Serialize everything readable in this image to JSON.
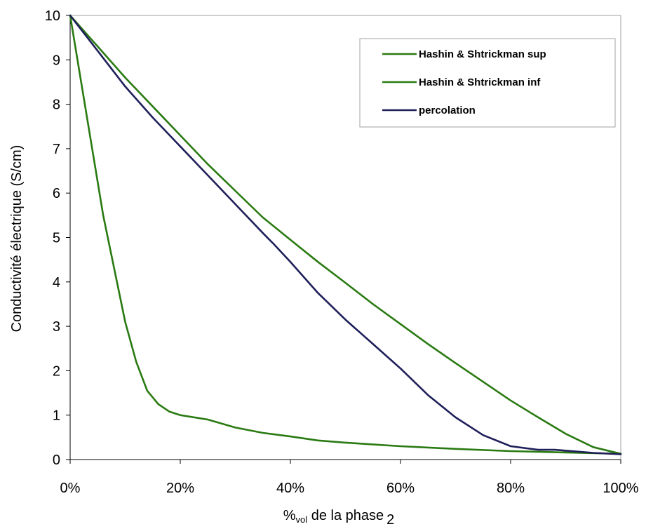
{
  "chart_data": {
    "type": "line",
    "xlabel_main": "%",
    "xlabel_sub": "vol",
    "xlabel_rest": " de la phase",
    "xlabel_suffix": "2",
    "ylabel": "Conductivité électrique (S/cm)",
    "xlim": [
      0,
      100
    ],
    "ylim": [
      0,
      10
    ],
    "x_ticks": [
      0,
      20,
      40,
      60,
      80,
      100
    ],
    "x_tick_labels": [
      "0%",
      "20%",
      "40%",
      "60%",
      "80%",
      "100%"
    ],
    "y_ticks": [
      0,
      1,
      2,
      3,
      4,
      5,
      6,
      7,
      8,
      9,
      10
    ],
    "y_tick_labels": [
      "0",
      "1",
      "2",
      "3",
      "4",
      "5",
      "6",
      "7",
      "8",
      "9",
      "10"
    ],
    "grid": false,
    "legend_position": "top-right",
    "series": [
      {
        "name": "Hashin & Shtrickman sup",
        "color": "#2a7a12",
        "x": [
          0,
          5,
          10,
          15,
          20,
          25,
          30,
          35,
          40,
          45,
          50,
          55,
          60,
          65,
          70,
          75,
          80,
          85,
          90,
          95,
          100
        ],
        "y": [
          10,
          9.3,
          8.6,
          7.95,
          7.3,
          6.65,
          6.05,
          5.45,
          4.95,
          4.45,
          3.98,
          3.5,
          3.05,
          2.6,
          2.17,
          1.75,
          1.33,
          0.95,
          0.58,
          0.28,
          0.13
        ]
      },
      {
        "name": "Hashin & Shtrickman inf",
        "color": "#2a7a12",
        "x": [
          0,
          2,
          4,
          6,
          8,
          10,
          12,
          14,
          16,
          18,
          20,
          25,
          30,
          35,
          40,
          45,
          50,
          60,
          70,
          80,
          90,
          100
        ],
        "y": [
          10,
          8.5,
          7.0,
          5.5,
          4.3,
          3.1,
          2.2,
          1.55,
          1.25,
          1.08,
          1.0,
          0.9,
          0.72,
          0.6,
          0.52,
          0.43,
          0.38,
          0.3,
          0.24,
          0.19,
          0.16,
          0.13
        ]
      },
      {
        "name": "percolation",
        "color": "#1f1f5a",
        "x": [
          0,
          5,
          10,
          15,
          20,
          25,
          30,
          35,
          37,
          40,
          45,
          50,
          55,
          60,
          65,
          70,
          75,
          80,
          85,
          88,
          90,
          95,
          100
        ],
        "y": [
          10,
          9.2,
          8.4,
          7.7,
          7.05,
          6.4,
          5.75,
          5.1,
          4.85,
          4.45,
          3.75,
          3.15,
          2.6,
          2.05,
          1.45,
          0.95,
          0.55,
          0.3,
          0.22,
          0.22,
          0.2,
          0.15,
          0.12
        ]
      }
    ]
  }
}
